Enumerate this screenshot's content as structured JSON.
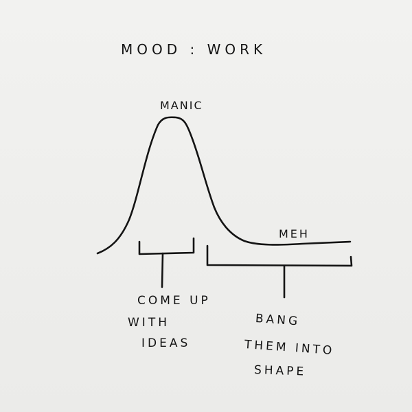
{
  "diagram": {
    "title": "MOOD : WORK",
    "peak_label": "MANIC",
    "plateau_label": "MEH",
    "phases": [
      {
        "caption_lines": [
          "COME UP",
          "WITH",
          "IDEAS"
        ]
      },
      {
        "caption_lines": [
          "BANG",
          "THEM INTO",
          "SHAPE"
        ]
      }
    ]
  },
  "style": {
    "paper_color": "#efefed",
    "ink_color": "#141414"
  }
}
